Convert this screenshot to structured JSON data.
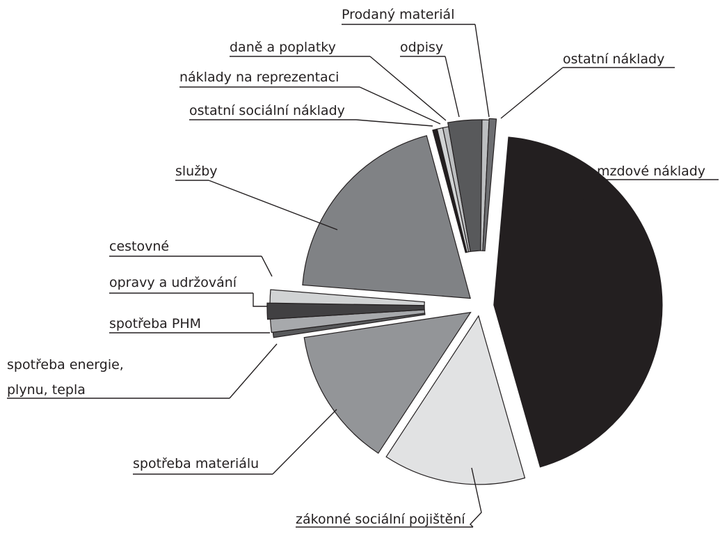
{
  "chart_data": {
    "type": "pie",
    "title": "",
    "slices": [
      {
        "label": "mzdové náklady",
        "value": 43.6,
        "color": "#231f20"
      },
      {
        "label": "zákonné sociální pojištění",
        "value": 13.5,
        "color": "#e1e2e3"
      },
      {
        "label": "spotřeba materiálu",
        "value": 13.2,
        "color": "#939598"
      },
      {
        "label": "spotřeba energie, plynu, tepla",
        "value": 0.4,
        "color": "#58595b"
      },
      {
        "label": "spotřeba PHM",
        "value": 1.0,
        "color": "#a7a9ac"
      },
      {
        "label": "opravy a udržování",
        "value": 1.2,
        "color": "#414042"
      },
      {
        "label": "cestovné",
        "value": 1.0,
        "color": "#d1d3d4"
      },
      {
        "label": "služby",
        "value": 19.3,
        "color": "#808285"
      },
      {
        "label": "ostatní sociální náklady",
        "value": 0.4,
        "color": "#231f20"
      },
      {
        "label": "náklady na reprezentaci",
        "value": 0.5,
        "color": "#d1d3d4"
      },
      {
        "label": "daně a poplatky",
        "value": 0.5,
        "color": "#bcbec0"
      },
      {
        "label": "odpisy",
        "value": 2.9,
        "color": "#58595b"
      },
      {
        "label": "Prodaný materiál",
        "value": 0.6,
        "color": "#bcbec0"
      },
      {
        "label": "ostatní náklady",
        "value": 0.6,
        "color": "#6d6e71"
      }
    ]
  }
}
